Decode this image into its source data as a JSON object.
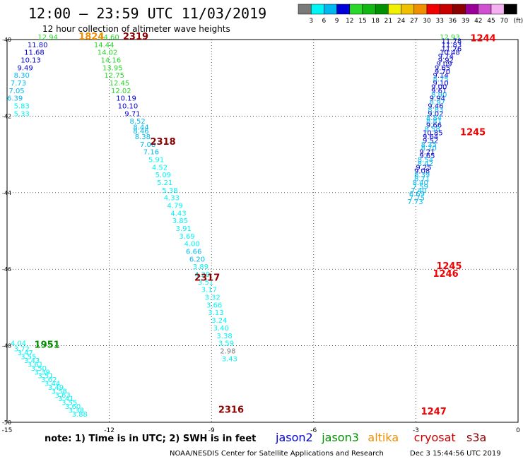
{
  "header": {
    "title": "12:00 — 23:59 UTC 11/03/2019",
    "subtitle": "12 hour collection of altimeter wave heights",
    "credit": "NOAA/NESDIS Center for Satellite Applications and Research",
    "generated": "Dec  3 15:44:56 UTC 2019"
  },
  "colorbar": {
    "colors": [
      "#7a7a7a",
      "#00f5f5",
      "#00b8f0",
      "#0000d8",
      "#2ad82a",
      "#12b812",
      "#009000",
      "#f0f000",
      "#f0c000",
      "#f09000",
      "#f00000",
      "#c80000",
      "#8c0000",
      "#9a0096",
      "#d050d0",
      "#f4b0f0",
      "#000000"
    ],
    "labels": [
      "3",
      "6",
      "9",
      "12",
      "15",
      "18",
      "21",
      "24",
      "27",
      "30",
      "33",
      "36",
      "39",
      "42",
      "45",
      "70",
      "(ft)"
    ]
  },
  "note": "note:  1) Time is in UTC; 2) SWH is in feet",
  "legend": [
    {
      "label": "jason2",
      "color": "#0000d8"
    },
    {
      "label": "jason3",
      "color": "#009000"
    },
    {
      "label": "altika",
      "color": "#f09000"
    },
    {
      "label": "cryosat",
      "color": "#c80000"
    },
    {
      "label": "s3a",
      "color": "#8c0000"
    }
  ],
  "chart_data": {
    "type": "scatter",
    "xlim": [
      -15,
      0
    ],
    "ylim": [
      -50,
      -40
    ],
    "x_ticks": [
      "-15",
      "-12",
      "-9",
      "-6",
      "-3",
      "0"
    ],
    "y_ticks": [
      "-40",
      "-42",
      "-44",
      "-46",
      "-48",
      "-50"
    ],
    "grid": true,
    "color_scale": {
      "bins_ft": [
        3,
        6,
        9,
        12,
        15,
        18,
        21,
        24,
        27,
        30,
        33,
        36,
        39,
        42,
        45,
        70
      ]
    },
    "time_labels": [
      {
        "text": "1824",
        "x": -12.9,
        "y": -40.0,
        "color": "#f09000"
      },
      {
        "text": "2319",
        "x": -11.6,
        "y": -40.0,
        "color": "#8c0000"
      },
      {
        "text": "2318",
        "x": -10.8,
        "y": -42.75,
        "color": "#8c0000"
      },
      {
        "text": "2317",
        "x": -9.5,
        "y": -46.3,
        "color": "#8c0000"
      },
      {
        "text": "2316",
        "x": -8.8,
        "y": -49.75,
        "color": "#8c0000"
      },
      {
        "text": "1244",
        "x": -1.4,
        "y": -40.05,
        "color": "#f00000"
      },
      {
        "text": "1245",
        "x": -1.7,
        "y": -42.5,
        "color": "#f00000"
      },
      {
        "text": "1245",
        "x": -2.4,
        "y": -46.0,
        "color": "#f00000"
      },
      {
        "text": "1246",
        "x": -2.5,
        "y": -46.2,
        "color": "#f00000"
      },
      {
        "text": "1247",
        "x": -2.85,
        "y": -49.8,
        "color": "#f00000"
      },
      {
        "text": "1951",
        "x": -14.2,
        "y": -48.05,
        "color": "#009000"
      }
    ],
    "tracks": [
      {
        "points": [
          [
            "12.94",
            -14.1,
            -40.0,
            "#2ad82a"
          ],
          [
            "11.80",
            -14.4,
            -40.2,
            "#0000d8"
          ],
          [
            "11.68",
            -14.5,
            -40.4,
            "#0000d8"
          ],
          [
            "10.13",
            -14.6,
            -40.6,
            "#0000d8"
          ],
          [
            "9.49",
            -14.7,
            -40.8,
            "#0000d8"
          ],
          [
            "8.30",
            -14.8,
            -41.0,
            "#00b8f0"
          ],
          [
            "7.73",
            -14.9,
            -41.2,
            "#00b8f0"
          ],
          [
            "7.05",
            -14.95,
            -41.4,
            "#00b8f0"
          ],
          [
            "6.39",
            -15.0,
            -41.6,
            "#00b8f0"
          ],
          [
            "5.83",
            -14.8,
            -41.8,
            "#00f5f5"
          ],
          [
            "5.33",
            -14.8,
            -42.0,
            "#00f5f5"
          ]
        ]
      },
      {
        "points": [
          [
            "14.60",
            -12.3,
            -40.0,
            "#2ad82a"
          ],
          [
            "14.44",
            -12.45,
            -40.2,
            "#2ad82a"
          ],
          [
            "14.02",
            -12.35,
            -40.4,
            "#2ad82a"
          ],
          [
            "14.16",
            -12.25,
            -40.6,
            "#2ad82a"
          ],
          [
            "13.95",
            -12.2,
            -40.8,
            "#2ad82a"
          ],
          [
            "12.75",
            -12.15,
            -41.0,
            "#2ad82a"
          ],
          [
            "12.45",
            -12.0,
            -41.2,
            "#2ad82a"
          ],
          [
            "12.02",
            -11.95,
            -41.4,
            "#2ad82a"
          ],
          [
            "10.19",
            -11.8,
            -41.6,
            "#0000d8"
          ],
          [
            "10.10",
            -11.75,
            -41.8,
            "#0000d8"
          ],
          [
            "9.71",
            -11.55,
            -42.0,
            "#0000d8"
          ],
          [
            "8.52",
            -11.4,
            -42.2,
            "#00b8f0"
          ],
          [
            "8.44",
            -11.3,
            -42.35,
            "#00b8f0"
          ],
          [
            "8.46",
            -11.3,
            -42.45,
            "#00b8f0"
          ],
          [
            "8.38",
            -11.25,
            -42.6,
            "#00b8f0"
          ],
          [
            "7.08",
            -11.1,
            -42.8,
            "#00b8f0"
          ],
          [
            "7.16",
            -11.0,
            -43.0,
            "#00b8f0"
          ],
          [
            "5.91",
            -10.85,
            -43.2,
            "#00f5f5"
          ],
          [
            "4.52",
            -10.75,
            -43.4,
            "#00f5f5"
          ],
          [
            "5.09",
            -10.65,
            -43.6,
            "#00f5f5"
          ],
          [
            "5.21",
            -10.6,
            -43.8,
            "#00f5f5"
          ],
          [
            "5.38",
            -10.45,
            -44.0,
            "#00f5f5"
          ],
          [
            "4.33",
            -10.4,
            -44.2,
            "#00f5f5"
          ],
          [
            "4.79",
            -10.3,
            -44.4,
            "#00f5f5"
          ],
          [
            "4.43",
            -10.2,
            -44.6,
            "#00f5f5"
          ],
          [
            "3.85",
            -10.15,
            -44.8,
            "#00f5f5"
          ],
          [
            "3.91",
            -10.05,
            -45.0,
            "#00f5f5"
          ],
          [
            "3.69",
            -9.95,
            -45.2,
            "#00f5f5"
          ],
          [
            "4.00",
            -9.8,
            -45.4,
            "#00f5f5"
          ],
          [
            "6.66",
            -9.75,
            -45.6,
            "#00b8f0"
          ],
          [
            "6.20",
            -9.65,
            -45.8,
            "#00b8f0"
          ],
          [
            "3.89",
            -9.55,
            -46.0,
            "#00f5f5"
          ],
          [
            "4.29",
            -9.5,
            -46.2,
            "#00f5f5"
          ],
          [
            "3.51",
            -9.4,
            -46.4,
            "#00f5f5"
          ],
          [
            "3.17",
            -9.3,
            -46.6,
            "#00f5f5"
          ],
          [
            "3.32",
            -9.2,
            -46.8,
            "#00f5f5"
          ],
          [
            "3.66",
            -9.15,
            -47.0,
            "#00f5f5"
          ],
          [
            "3.13",
            -9.1,
            -47.2,
            "#00f5f5"
          ],
          [
            "3.24",
            -9.0,
            -47.4,
            "#00f5f5"
          ],
          [
            "3.40",
            -8.95,
            -47.6,
            "#00f5f5"
          ],
          [
            "3.38",
            -8.85,
            -47.8,
            "#00f5f5"
          ],
          [
            "3.59",
            -8.8,
            -48.0,
            "#00f5f5"
          ],
          [
            "2.98",
            -8.75,
            -48.2,
            "#7a7a7a"
          ],
          [
            "3.43",
            -8.7,
            -48.4,
            "#00f5f5"
          ]
        ]
      },
      {
        "points": [
          [
            "12.93",
            -2.3,
            -40.0,
            "#2ad82a"
          ],
          [
            "11.78",
            -2.25,
            -40.1,
            "#0000d8"
          ],
          [
            "11.83",
            -2.25,
            -40.2,
            "#0000d8"
          ],
          [
            "11.76",
            -2.25,
            -40.3,
            "#0000d8"
          ],
          [
            "10.48",
            -2.3,
            -40.4,
            "#0000d8"
          ],
          [
            "9.74",
            -2.35,
            -40.5,
            "#0000d8"
          ],
          [
            "9.92",
            -2.35,
            -40.6,
            "#0000d8"
          ],
          [
            "9.09",
            -2.4,
            -40.7,
            "#0000d8"
          ],
          [
            "9.65",
            -2.45,
            -40.8,
            "#0000d8"
          ],
          [
            "9.70",
            -2.45,
            -40.9,
            "#0000d8"
          ],
          [
            "9.14",
            -2.5,
            -41.0,
            "#0000d8"
          ],
          [
            "8.75",
            -2.5,
            -41.1,
            "#00b8f0"
          ],
          [
            "9.10",
            -2.5,
            -41.2,
            "#0000d8"
          ],
          [
            "9.00",
            -2.55,
            -41.3,
            "#0000d8"
          ],
          [
            "9.61",
            -2.55,
            -41.4,
            "#0000d8"
          ],
          [
            "8.90",
            -2.55,
            -41.5,
            "#00b8f0"
          ],
          [
            "9.94",
            -2.6,
            -41.6,
            "#0000d8"
          ],
          [
            "8.97",
            -2.6,
            -41.7,
            "#00b8f0"
          ],
          [
            "9.46",
            -2.65,
            -41.8,
            "#0000d8"
          ],
          [
            "8.83",
            -2.65,
            -41.9,
            "#00b8f0"
          ],
          [
            "9.02",
            -2.65,
            -42.0,
            "#0000d8"
          ],
          [
            "8.84",
            -2.7,
            -42.1,
            "#00b8f0"
          ],
          [
            "8.81",
            -2.7,
            -42.2,
            "#00b8f0"
          ],
          [
            "9.66",
            -2.7,
            -42.3,
            "#0000d8"
          ],
          [
            "8.58",
            -2.75,
            -42.4,
            "#00b8f0"
          ],
          [
            "10.85",
            -2.8,
            -42.5,
            "#0000d8"
          ],
          [
            "9.64",
            -2.8,
            -42.6,
            "#0000d8"
          ],
          [
            "9.52",
            -2.8,
            -42.7,
            "#0000d8"
          ],
          [
            "8.35",
            -2.85,
            -42.8,
            "#00b8f0"
          ],
          [
            "8.20",
            -2.85,
            -42.9,
            "#00b8f0"
          ],
          [
            "9.21",
            -2.9,
            -43.0,
            "#0000d8"
          ],
          [
            "9.65",
            -2.9,
            -43.1,
            "#0000d8"
          ],
          [
            "8.54",
            -2.95,
            -43.2,
            "#00b8f0"
          ],
          [
            "8.42",
            -2.95,
            -43.3,
            "#00b8f0"
          ],
          [
            "9.25",
            -3.0,
            -43.4,
            "#0000d8"
          ],
          [
            "9.08",
            -3.05,
            -43.5,
            "#0000d8"
          ],
          [
            "8.39",
            -3.05,
            -43.6,
            "#00b8f0"
          ],
          [
            "8.71",
            -3.05,
            -43.7,
            "#00b8f0"
          ],
          [
            "8.40",
            -3.1,
            -43.8,
            "#00b8f0"
          ],
          [
            "7.59",
            -3.1,
            -43.9,
            "#00b8f0"
          ],
          [
            "7.40",
            -3.15,
            -44.0,
            "#00b8f0"
          ],
          [
            "6.69",
            -3.2,
            -44.1,
            "#00b8f0"
          ],
          [
            "7.75",
            -3.2,
            -44.2,
            "#00b8f0"
          ],
          [
            "7.73",
            -3.25,
            -44.3,
            "#00b8f0"
          ]
        ]
      },
      {
        "points": [
          [
            "4.04",
            -14.9,
            -48.0,
            "#00f5f5"
          ],
          [
            "3.72",
            -14.8,
            -48.15,
            "#00f5f5"
          ],
          [
            "3.47",
            -14.7,
            -48.25,
            "#00f5f5"
          ],
          [
            "3.55",
            -14.6,
            -48.35,
            "#00f5f5"
          ],
          [
            "3.43",
            -14.5,
            -48.45,
            "#00f5f5"
          ],
          [
            "3.61",
            -14.4,
            -48.55,
            "#00f5f5"
          ],
          [
            "3.50",
            -14.3,
            -48.65,
            "#00f5f5"
          ],
          [
            "3.39",
            -14.2,
            -48.75,
            "#00f5f5"
          ],
          [
            "3.51",
            -14.1,
            -48.85,
            "#00f5f5"
          ],
          [
            "3.62",
            -14.0,
            -48.95,
            "#00f5f5"
          ],
          [
            "3.44",
            -13.9,
            -49.05,
            "#00f5f5"
          ],
          [
            "3.49",
            -13.8,
            -49.15,
            "#00f5f5"
          ],
          [
            "3.58",
            -13.7,
            -49.25,
            "#00f5f5"
          ],
          [
            "3.63",
            -13.6,
            -49.35,
            "#00f5f5"
          ],
          [
            "3.41",
            -13.5,
            -49.45,
            "#00f5f5"
          ],
          [
            "3.55",
            -13.4,
            -49.55,
            "#00f5f5"
          ],
          [
            "3.60",
            -13.3,
            -49.65,
            "#00f5f5"
          ],
          [
            "3.38",
            -13.2,
            -49.75,
            "#00f5f5"
          ],
          [
            "3.88",
            -13.1,
            -49.85,
            "#00f5f5"
          ]
        ]
      }
    ]
  }
}
